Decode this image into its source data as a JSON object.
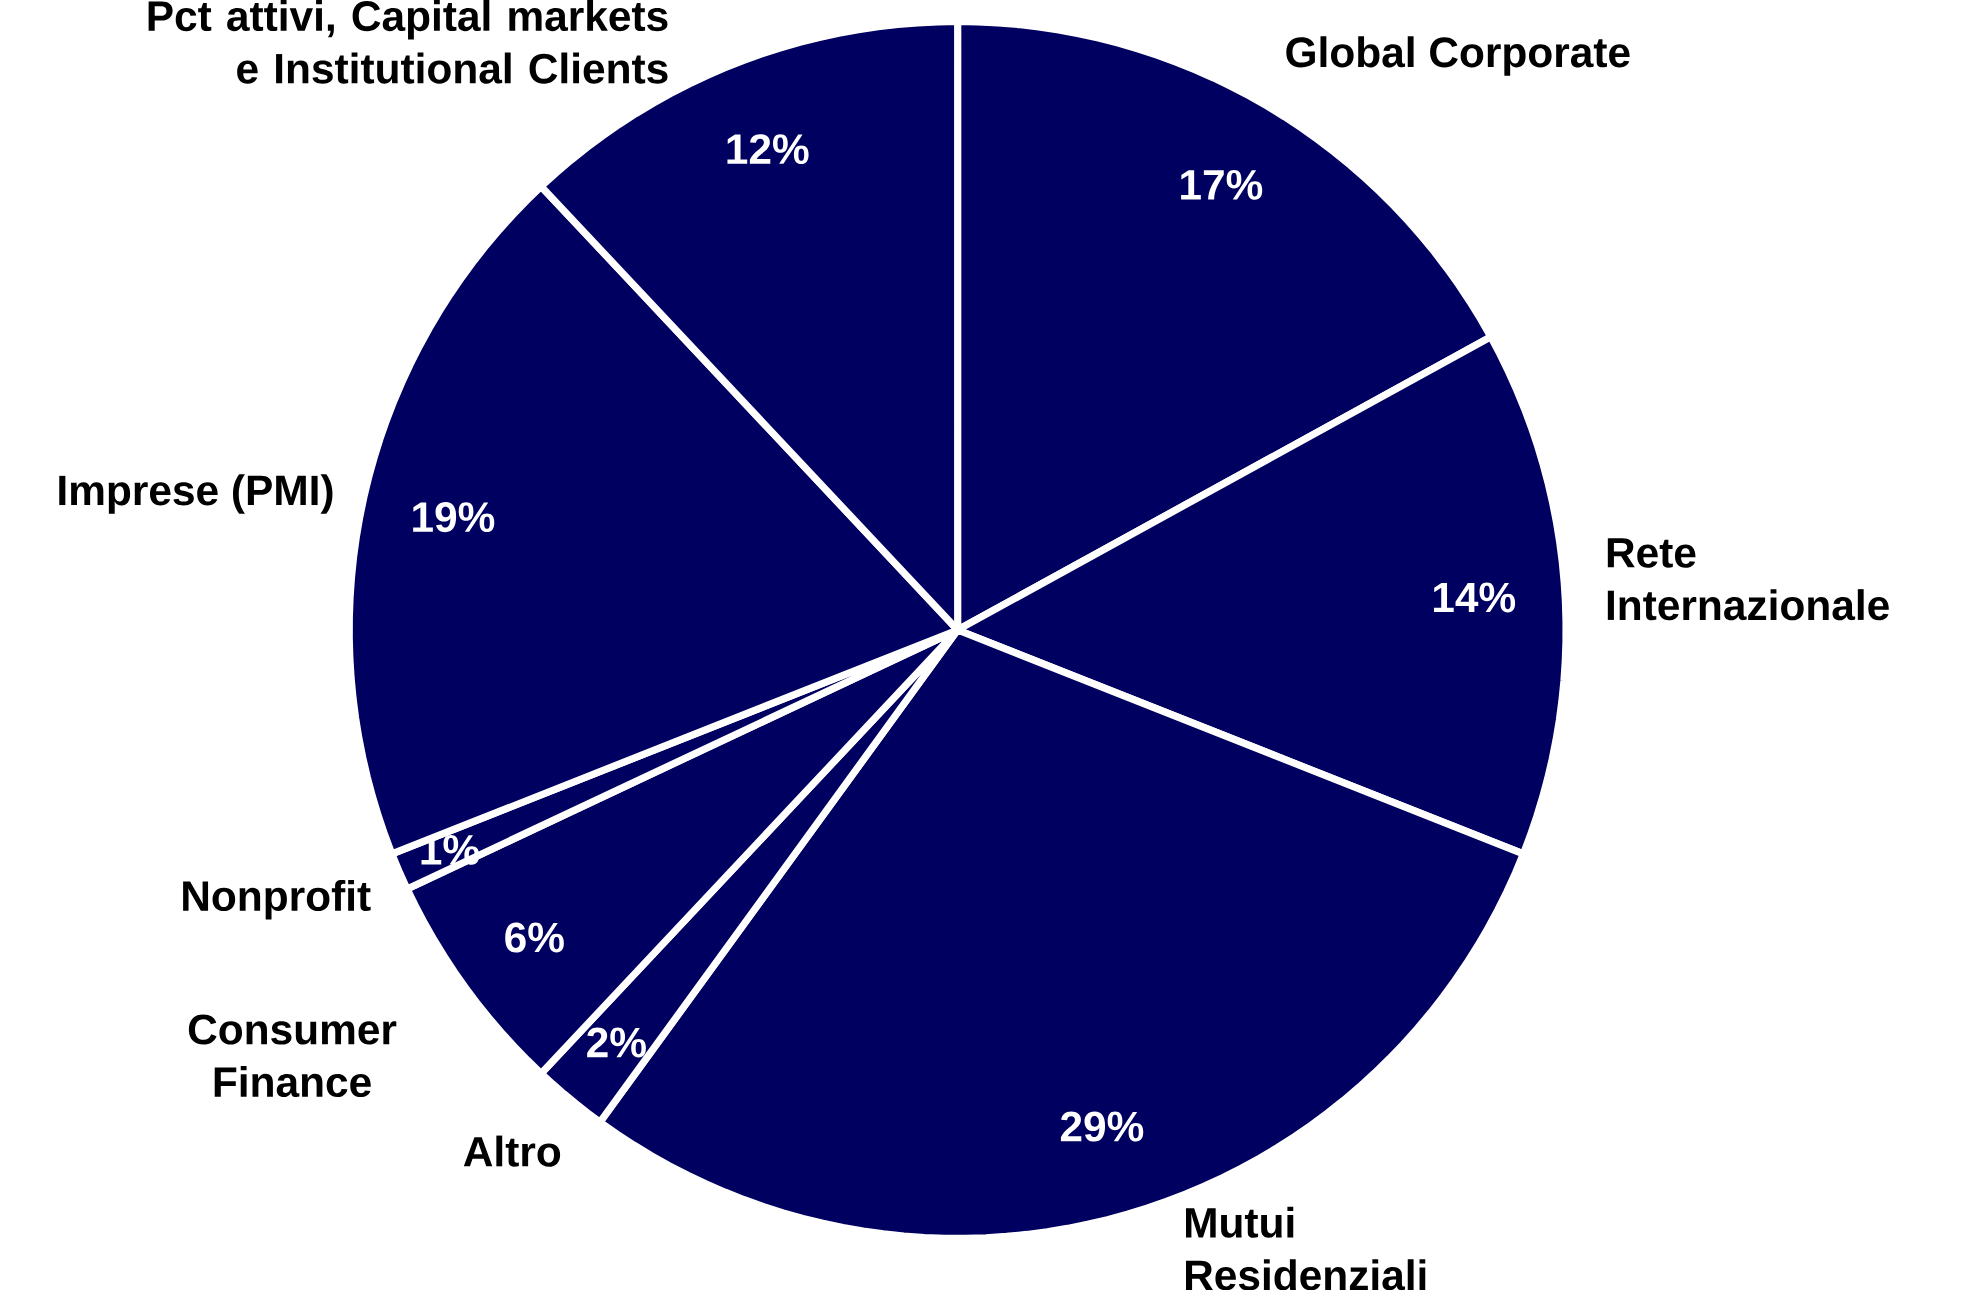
{
  "chart_data": {
    "type": "pie",
    "categories": [
      "Global Corporate",
      "Rete Internazionale",
      "Mutui Residenziali",
      "Altro",
      "Consumer Finance",
      "Nonprofit",
      "Imprese (PMI)",
      "Pct attivi, Capital markets e Institutional Clients"
    ],
    "values": [
      17,
      14,
      29,
      2,
      6,
      1,
      19,
      12
    ],
    "value_labels": [
      "17%",
      "14%",
      "29%",
      "2%",
      "6%",
      "1%",
      "19%",
      "12%"
    ],
    "colors": [
      "#000060",
      "#000060",
      "#000060",
      "#000060",
      "#000060",
      "#000060",
      "#000060",
      "#000060"
    ]
  }
}
